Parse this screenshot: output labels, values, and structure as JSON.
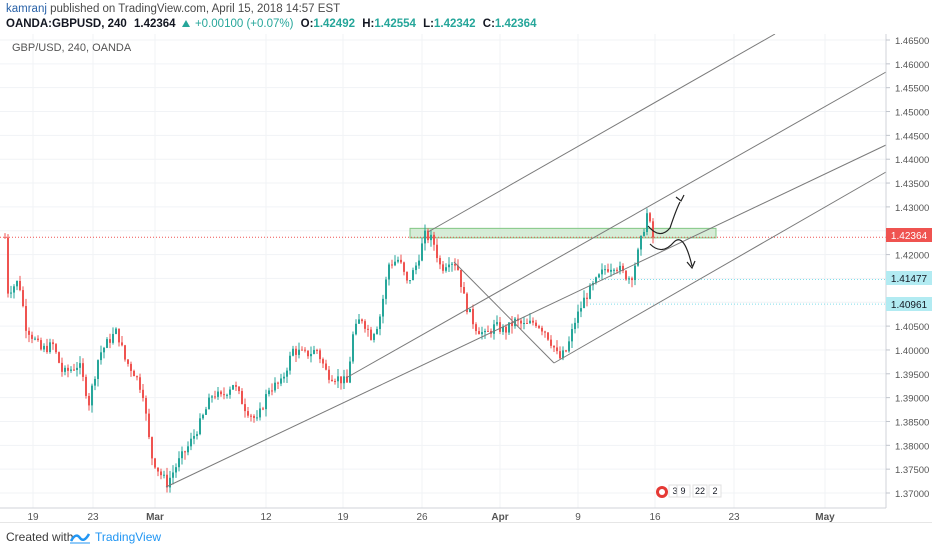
{
  "publication": {
    "author": "kamranj",
    "text": " published on TradingView.com, April 15, 2018 14:57 EST"
  },
  "ohlc": {
    "symbol": "OANDA:GBPUSD, 240",
    "last": "1.42364",
    "change": "+0.00100 (+0.07%)",
    "o_label": "O:",
    "o": "1.42492",
    "h_label": "H:",
    "h": "1.42554",
    "l_label": "L:",
    "l": "1.42342",
    "c_label": "C:",
    "c": "1.42364"
  },
  "chart_title": "GBP/USD, 240, OANDA",
  "chart_data": {
    "type": "candlestick",
    "symbol": "GBP/USD",
    "interval": "240",
    "ylim": [
      1.3675,
      1.4655
    ],
    "price_ticks": [
      "1.46500",
      "1.46000",
      "1.45500",
      "1.45000",
      "1.44500",
      "1.44000",
      "1.43500",
      "1.43000",
      "1.42500",
      "1.42000",
      "1.41500",
      "1.41000",
      "1.40500",
      "1.40000",
      "1.39500",
      "1.39000",
      "1.38500",
      "1.38000",
      "1.37500",
      "1.37000"
    ],
    "time_ticks": [
      "19",
      "23",
      "Mar",
      "12",
      "19",
      "26",
      "Apr",
      "9",
      "16",
      "23",
      "May"
    ],
    "markers": {
      "last_price": "1.42364",
      "level_1": "1.41477",
      "level_2": "1.40961"
    },
    "key_points": [
      {
        "time": "Feb 16",
        "price": 1.4135
      },
      {
        "time": "Mar 1",
        "price": 1.3715
      },
      {
        "time": "Mar 20",
        "price": 1.391
      },
      {
        "time": "Mar 27",
        "price": 1.4245
      },
      {
        "time": "Apr 6",
        "price": 1.3965
      },
      {
        "time": "Apr 13",
        "price": 1.4295
      },
      {
        "time": "Apr 14",
        "price": 1.42364
      }
    ],
    "colors": {
      "up": "#26a69a",
      "down": "#ef5350",
      "zone": "#a5d6a7",
      "last_price": "#ef5350"
    }
  },
  "events": {
    "e1": "3",
    "e2": "9",
    "e3": "22",
    "e4": "2"
  },
  "footer": {
    "created": "Created with",
    "brand": "TradingView"
  }
}
